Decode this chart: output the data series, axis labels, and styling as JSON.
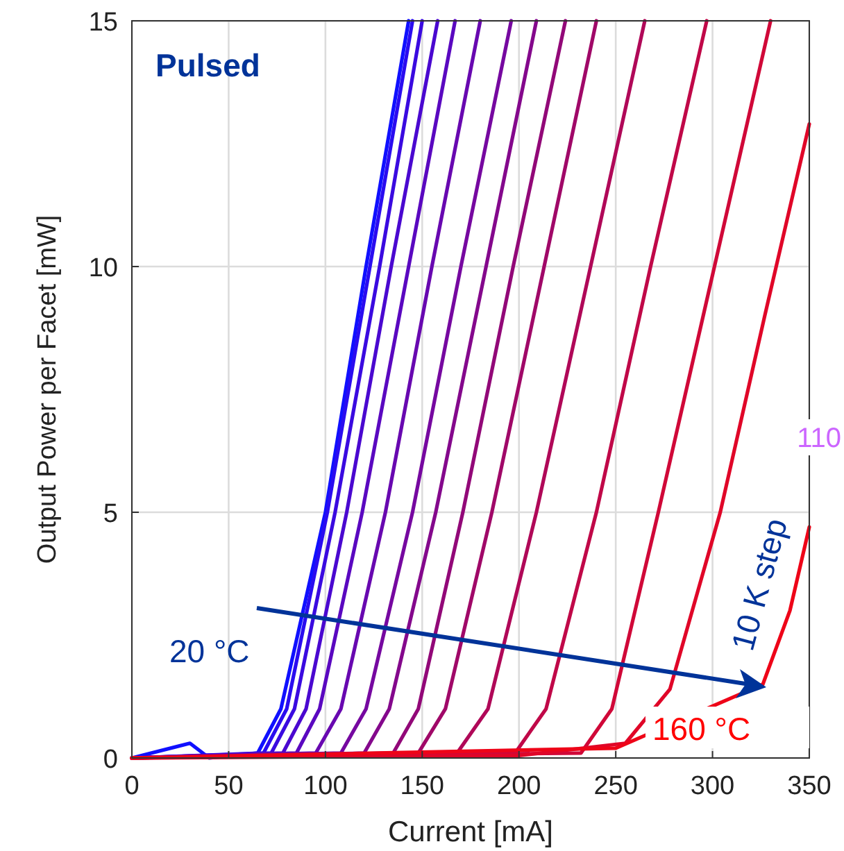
{
  "chart_data": {
    "type": "line",
    "xlabel": "Current [mA]",
    "ylabel": "Output Power per Facet [mW]",
    "xlim": [
      0,
      350
    ],
    "ylim": [
      0,
      15
    ],
    "xticks": [
      0,
      50,
      100,
      150,
      200,
      250,
      300,
      350
    ],
    "yticks": [
      0,
      5,
      10,
      15
    ],
    "grid": true,
    "marker": "none",
    "line_style": "solid",
    "annotations": [
      "Pulsed",
      "20 °C",
      "10 K step",
      "160 °C",
      "110"
    ],
    "series": [
      {
        "color": "#1010ff",
        "x": [
          0,
          30,
          40,
          65,
          77,
          100,
          121,
          143
        ],
        "values": [
          0,
          0.3,
          0,
          0.1,
          1,
          5,
          10,
          15
        ]
      },
      {
        "color": "#2a0cf0",
        "x": [
          0,
          68,
          80,
          101,
          123,
          145
        ],
        "values": [
          0,
          0.1,
          1,
          5,
          10,
          15
        ]
      },
      {
        "color": "#3a0ae0",
        "x": [
          0,
          72,
          84,
          105,
          128,
          150
        ],
        "values": [
          0,
          0.1,
          1,
          5,
          10,
          15
        ]
      },
      {
        "color": "#4a08d0",
        "x": [
          0,
          78,
          90,
          111,
          134,
          158
        ],
        "values": [
          0,
          0.1,
          1,
          5,
          10,
          15
        ]
      },
      {
        "color": "#5a08c0",
        "x": [
          0,
          85,
          97,
          119,
          143,
          167
        ],
        "values": [
          0,
          0.1,
          1,
          5,
          10,
          15
        ]
      },
      {
        "color": "#6808b0",
        "x": [
          0,
          95,
          108,
          131,
          155,
          180
        ],
        "values": [
          0,
          0.1,
          1,
          5,
          10,
          15
        ]
      },
      {
        "color": "#7608a0",
        "x": [
          0,
          108,
          121,
          145,
          170,
          196
        ],
        "values": [
          0,
          0.1,
          1,
          5,
          10,
          15
        ]
      },
      {
        "color": "#84088c",
        "x": [
          0,
          120,
          133,
          157,
          183,
          209
        ],
        "values": [
          0,
          0.1,
          1,
          5,
          10,
          15
        ]
      },
      {
        "color": "#920878",
        "x": [
          0,
          135,
          148,
          171,
          197,
          224
        ],
        "values": [
          0,
          0.1,
          1,
          5,
          10,
          15
        ]
      },
      {
        "color": "#a00868",
        "x": [
          0,
          148,
          162,
          186,
          213,
          240
        ],
        "values": [
          0,
          0.1,
          1,
          5,
          10,
          15
        ]
      },
      {
        "color": "#b00858",
        "x": [
          0,
          168,
          184,
          209,
          237,
          265
        ],
        "values": [
          0,
          0.1,
          1,
          5,
          10,
          15
        ]
      },
      {
        "color": "#c00848",
        "x": [
          0,
          198,
          214,
          240,
          268,
          297
        ],
        "values": [
          0,
          0.1,
          1,
          5,
          10,
          15
        ]
      },
      {
        "color": "#d00838",
        "x": [
          0,
          232,
          248,
          272,
          301,
          330
        ],
        "values": [
          0,
          0.1,
          1,
          5,
          10,
          15
        ]
      },
      {
        "color": "#e00628",
        "x": [
          0,
          200,
          255,
          278,
          304,
          327,
          350
        ],
        "values": [
          0,
          0.05,
          0.3,
          1.4,
          5,
          9,
          12.9
        ]
      },
      {
        "color": "#ee0418",
        "x": [
          0,
          250,
          300,
          326,
          340,
          350
        ],
        "values": [
          0,
          0.2,
          null,
          1.5,
          3,
          4.7
        ]
      }
    ]
  }
}
